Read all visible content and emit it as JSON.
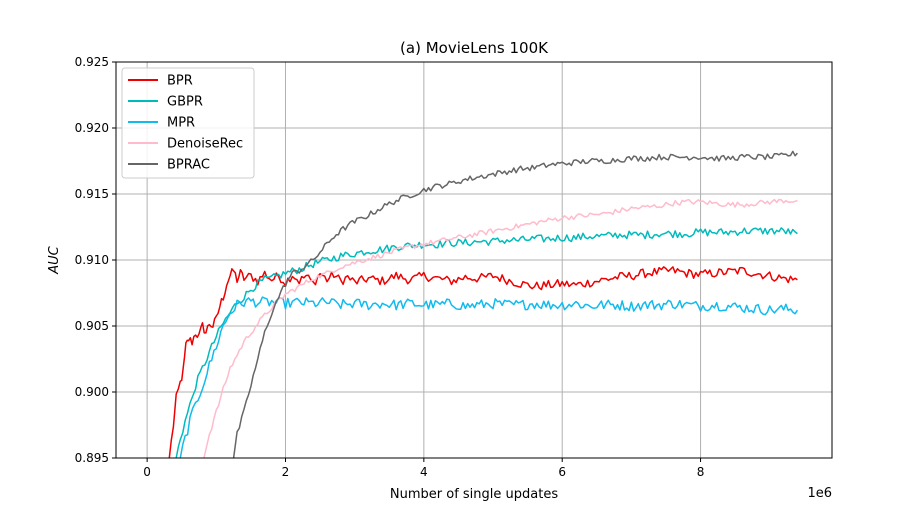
{
  "chart_data": {
    "type": "line",
    "title": "(a) MovieLens 100K",
    "xlabel": "Number of single updates",
    "ylabel": "AUC",
    "x_scale_label": "1e6",
    "xlim": [
      -0.45,
      9.9
    ],
    "ylim": [
      0.895,
      0.925
    ],
    "x_ticks": [
      0,
      2,
      4,
      6,
      8
    ],
    "x_tick_labels": [
      "0",
      "2",
      "4",
      "6",
      "8"
    ],
    "y_ticks": [
      0.895,
      0.9,
      0.905,
      0.91,
      0.915,
      0.92,
      0.925
    ],
    "y_tick_labels": [
      "0.895",
      "0.900",
      "0.905",
      "0.910",
      "0.915",
      "0.920",
      "0.925"
    ],
    "grid": true,
    "legend_position": "top-left",
    "series": [
      {
        "name": "BPR",
        "color": "#ee0000",
        "points": [
          [
            0.32,
            0.895
          ],
          [
            0.38,
            0.8975
          ],
          [
            0.42,
            0.8995
          ],
          [
            0.48,
            0.9007
          ],
          [
            0.52,
            0.9015
          ],
          [
            0.56,
            0.9035
          ],
          [
            0.6,
            0.904
          ],
          [
            0.65,
            0.9038
          ],
          [
            0.7,
            0.9045
          ],
          [
            0.75,
            0.9042
          ],
          [
            0.8,
            0.905
          ],
          [
            0.85,
            0.9045
          ],
          [
            0.9,
            0.9052
          ],
          [
            0.95,
            0.905
          ],
          [
            1.0,
            0.9055
          ],
          [
            1.05,
            0.9065
          ],
          [
            1.1,
            0.9072
          ],
          [
            1.15,
            0.9082
          ],
          [
            1.2,
            0.9088
          ],
          [
            1.25,
            0.9092
          ],
          [
            1.3,
            0.9085
          ],
          [
            1.35,
            0.909
          ],
          [
            1.4,
            0.9086
          ],
          [
            1.5,
            0.9088
          ],
          [
            1.6,
            0.9084
          ],
          [
            1.7,
            0.909
          ],
          [
            1.8,
            0.9085
          ],
          [
            1.9,
            0.9088
          ],
          [
            2.0,
            0.9083
          ],
          [
            2.1,
            0.9089
          ],
          [
            2.2,
            0.9084
          ],
          [
            2.3,
            0.9088
          ],
          [
            2.4,
            0.9082
          ],
          [
            2.5,
            0.909
          ],
          [
            2.6,
            0.9085
          ],
          [
            2.7,
            0.9089
          ],
          [
            2.8,
            0.9084
          ],
          [
            2.9,
            0.9087
          ],
          [
            3.0,
            0.9083
          ],
          [
            3.2,
            0.9086
          ],
          [
            3.4,
            0.9084
          ],
          [
            3.6,
            0.9088
          ],
          [
            3.8,
            0.9085
          ],
          [
            4.0,
            0.9088
          ],
          [
            4.2,
            0.9086
          ],
          [
            4.4,
            0.9084
          ],
          [
            4.6,
            0.9087
          ],
          [
            4.8,
            0.9086
          ],
          [
            5.0,
            0.9088
          ],
          [
            5.2,
            0.9085
          ],
          [
            5.4,
            0.9082
          ],
          [
            5.6,
            0.908
          ],
          [
            5.8,
            0.9081
          ],
          [
            6.0,
            0.9082
          ],
          [
            6.2,
            0.9081
          ],
          [
            6.4,
            0.9083
          ],
          [
            6.6,
            0.9085
          ],
          [
            6.8,
            0.9087
          ],
          [
            7.0,
            0.9088
          ],
          [
            7.2,
            0.909
          ],
          [
            7.4,
            0.9091
          ],
          [
            7.6,
            0.9092
          ],
          [
            7.8,
            0.909
          ],
          [
            8.0,
            0.9089
          ],
          [
            8.2,
            0.909
          ],
          [
            8.4,
            0.9091
          ],
          [
            8.6,
            0.9092
          ],
          [
            8.8,
            0.909
          ],
          [
            9.0,
            0.9088
          ],
          [
            9.2,
            0.9086
          ],
          [
            9.4,
            0.9085
          ]
        ]
      },
      {
        "name": "GBPR",
        "color": "#00bbbb",
        "points": [
          [
            0.42,
            0.895
          ],
          [
            0.48,
            0.8965
          ],
          [
            0.55,
            0.8978
          ],
          [
            0.62,
            0.899
          ],
          [
            0.7,
            0.9005
          ],
          [
            0.8,
            0.9018
          ],
          [
            0.9,
            0.903
          ],
          [
            1.0,
            0.9042
          ],
          [
            1.1,
            0.9052
          ],
          [
            1.2,
            0.906
          ],
          [
            1.3,
            0.9068
          ],
          [
            1.4,
            0.9072
          ],
          [
            1.5,
            0.9078
          ],
          [
            1.6,
            0.9082
          ],
          [
            1.7,
            0.9085
          ],
          [
            1.8,
            0.9086
          ],
          [
            1.9,
            0.9088
          ],
          [
            2.0,
            0.909
          ],
          [
            2.2,
            0.9093
          ],
          [
            2.4,
            0.9097
          ],
          [
            2.6,
            0.91
          ],
          [
            2.8,
            0.9103
          ],
          [
            3.0,
            0.9105
          ],
          [
            3.2,
            0.9107
          ],
          [
            3.4,
            0.9108
          ],
          [
            3.6,
            0.911
          ],
          [
            3.8,
            0.9111
          ],
          [
            4.0,
            0.9112
          ],
          [
            4.2,
            0.9112
          ],
          [
            4.4,
            0.9113
          ],
          [
            4.6,
            0.9113
          ],
          [
            4.8,
            0.9114
          ],
          [
            5.0,
            0.9114
          ],
          [
            5.2,
            0.9115
          ],
          [
            5.4,
            0.9115
          ],
          [
            5.6,
            0.9116
          ],
          [
            5.8,
            0.9116
          ],
          [
            6.0,
            0.9117
          ],
          [
            6.2,
            0.9117
          ],
          [
            6.4,
            0.9118
          ],
          [
            6.6,
            0.9118
          ],
          [
            6.8,
            0.9119
          ],
          [
            7.0,
            0.9119
          ],
          [
            7.2,
            0.9119
          ],
          [
            7.4,
            0.912
          ],
          [
            7.6,
            0.912
          ],
          [
            7.8,
            0.912
          ],
          [
            8.0,
            0.9121
          ],
          [
            8.2,
            0.9121
          ],
          [
            8.4,
            0.9121
          ],
          [
            8.6,
            0.9122
          ],
          [
            8.8,
            0.9122
          ],
          [
            9.0,
            0.9122
          ],
          [
            9.2,
            0.9122
          ],
          [
            9.4,
            0.912
          ]
        ]
      },
      {
        "name": "MPR",
        "color": "#11bbee",
        "points": [
          [
            0.48,
            0.895
          ],
          [
            0.55,
            0.8965
          ],
          [
            0.62,
            0.8978
          ],
          [
            0.7,
            0.899
          ],
          [
            0.8,
            0.9005
          ],
          [
            0.9,
            0.902
          ],
          [
            1.0,
            0.9035
          ],
          [
            1.1,
            0.905
          ],
          [
            1.2,
            0.906
          ],
          [
            1.3,
            0.9066
          ],
          [
            1.4,
            0.9068
          ],
          [
            1.5,
            0.9069
          ],
          [
            1.6,
            0.9068
          ],
          [
            1.8,
            0.9068
          ],
          [
            2.0,
            0.9067
          ],
          [
            2.2,
            0.9068
          ],
          [
            2.4,
            0.9067
          ],
          [
            2.6,
            0.9068
          ],
          [
            2.8,
            0.9066
          ],
          [
            3.0,
            0.9067
          ],
          [
            3.2,
            0.9066
          ],
          [
            3.4,
            0.9067
          ],
          [
            3.6,
            0.9066
          ],
          [
            3.8,
            0.9067
          ],
          [
            4.0,
            0.9066
          ],
          [
            4.2,
            0.9066
          ],
          [
            4.4,
            0.9067
          ],
          [
            4.6,
            0.9065
          ],
          [
            4.8,
            0.9066
          ],
          [
            5.0,
            0.9067
          ],
          [
            5.2,
            0.9066
          ],
          [
            5.4,
            0.9066
          ],
          [
            5.6,
            0.9067
          ],
          [
            5.8,
            0.9066
          ],
          [
            6.0,
            0.9066
          ],
          [
            6.2,
            0.9067
          ],
          [
            6.4,
            0.9065
          ],
          [
            6.6,
            0.9066
          ],
          [
            6.8,
            0.9066
          ],
          [
            7.0,
            0.9065
          ],
          [
            7.2,
            0.9066
          ],
          [
            7.4,
            0.9066
          ],
          [
            7.6,
            0.9067
          ],
          [
            7.8,
            0.9066
          ],
          [
            8.0,
            0.9065
          ],
          [
            8.2,
            0.9066
          ],
          [
            8.4,
            0.9065
          ],
          [
            8.6,
            0.9064
          ],
          [
            8.8,
            0.9063
          ],
          [
            9.0,
            0.9062
          ],
          [
            9.2,
            0.9063
          ],
          [
            9.4,
            0.9062
          ]
        ]
      },
      {
        "name": "DenoiseRec",
        "color": "#ffbbcc",
        "points": [
          [
            0.82,
            0.895
          ],
          [
            0.9,
            0.8968
          ],
          [
            1.0,
            0.8985
          ],
          [
            1.1,
            0.9002
          ],
          [
            1.2,
            0.9018
          ],
          [
            1.3,
            0.9028
          ],
          [
            1.4,
            0.9038
          ],
          [
            1.5,
            0.9045
          ],
          [
            1.6,
            0.9052
          ],
          [
            1.7,
            0.9058
          ],
          [
            1.8,
            0.9064
          ],
          [
            1.9,
            0.9069
          ],
          [
            2.0,
            0.9074
          ],
          [
            2.2,
            0.908
          ],
          [
            2.4,
            0.9086
          ],
          [
            2.6,
            0.909
          ],
          [
            2.8,
            0.9095
          ],
          [
            3.0,
            0.9098
          ],
          [
            3.2,
            0.9101
          ],
          [
            3.4,
            0.9104
          ],
          [
            3.6,
            0.9107
          ],
          [
            3.8,
            0.911
          ],
          [
            4.0,
            0.9112
          ],
          [
            4.2,
            0.9114
          ],
          [
            4.4,
            0.9116
          ],
          [
            4.6,
            0.9118
          ],
          [
            4.8,
            0.912
          ],
          [
            5.0,
            0.9122
          ],
          [
            5.2,
            0.9124
          ],
          [
            5.4,
            0.9126
          ],
          [
            5.6,
            0.9128
          ],
          [
            5.8,
            0.913
          ],
          [
            6.0,
            0.9132
          ],
          [
            6.2,
            0.9133
          ],
          [
            6.4,
            0.9134
          ],
          [
            6.6,
            0.9135
          ],
          [
            6.8,
            0.9137
          ],
          [
            7.0,
            0.9139
          ],
          [
            7.2,
            0.914
          ],
          [
            7.4,
            0.9141
          ],
          [
            7.6,
            0.9143
          ],
          [
            7.8,
            0.9144
          ],
          [
            8.0,
            0.9144
          ],
          [
            8.2,
            0.9143
          ],
          [
            8.4,
            0.9142
          ],
          [
            8.6,
            0.9142
          ],
          [
            8.8,
            0.9143
          ],
          [
            9.0,
            0.9144
          ],
          [
            9.2,
            0.9145
          ],
          [
            9.4,
            0.9145
          ]
        ]
      },
      {
        "name": "BPRAC",
        "color": "#666666",
        "points": [
          [
            1.25,
            0.895
          ],
          [
            1.3,
            0.8968
          ],
          [
            1.4,
            0.8985
          ],
          [
            1.5,
            0.9005
          ],
          [
            1.6,
            0.9025
          ],
          [
            1.7,
            0.9045
          ],
          [
            1.8,
            0.906
          ],
          [
            1.9,
            0.9072
          ],
          [
            2.0,
            0.9082
          ],
          [
            2.1,
            0.909
          ],
          [
            2.2,
            0.9092
          ],
          [
            2.3,
            0.9096
          ],
          [
            2.4,
            0.91
          ],
          [
            2.5,
            0.9106
          ],
          [
            2.6,
            0.9112
          ],
          [
            2.7,
            0.9118
          ],
          [
            2.8,
            0.9122
          ],
          [
            2.9,
            0.9126
          ],
          [
            3.0,
            0.9129
          ],
          [
            3.2,
            0.9134
          ],
          [
            3.4,
            0.914
          ],
          [
            3.6,
            0.9145
          ],
          [
            3.8,
            0.9149
          ],
          [
            4.0,
            0.9153
          ],
          [
            4.2,
            0.9156
          ],
          [
            4.4,
            0.9158
          ],
          [
            4.6,
            0.9161
          ],
          [
            4.8,
            0.9163
          ],
          [
            5.0,
            0.9165
          ],
          [
            5.2,
            0.9167
          ],
          [
            5.4,
            0.9169
          ],
          [
            5.6,
            0.917
          ],
          [
            5.8,
            0.9172
          ],
          [
            6.0,
            0.9173
          ],
          [
            6.2,
            0.9174
          ],
          [
            6.4,
            0.9175
          ],
          [
            6.6,
            0.9175
          ],
          [
            6.8,
            0.9176
          ],
          [
            7.0,
            0.9177
          ],
          [
            7.2,
            0.9177
          ],
          [
            7.4,
            0.9178
          ],
          [
            7.6,
            0.9178
          ],
          [
            7.8,
            0.9178
          ],
          [
            8.0,
            0.9178
          ],
          [
            8.2,
            0.9177
          ],
          [
            8.4,
            0.9177
          ],
          [
            8.6,
            0.9178
          ],
          [
            8.8,
            0.9178
          ],
          [
            9.0,
            0.9178
          ],
          [
            9.2,
            0.9179
          ],
          [
            9.4,
            0.9181
          ]
        ]
      }
    ]
  }
}
